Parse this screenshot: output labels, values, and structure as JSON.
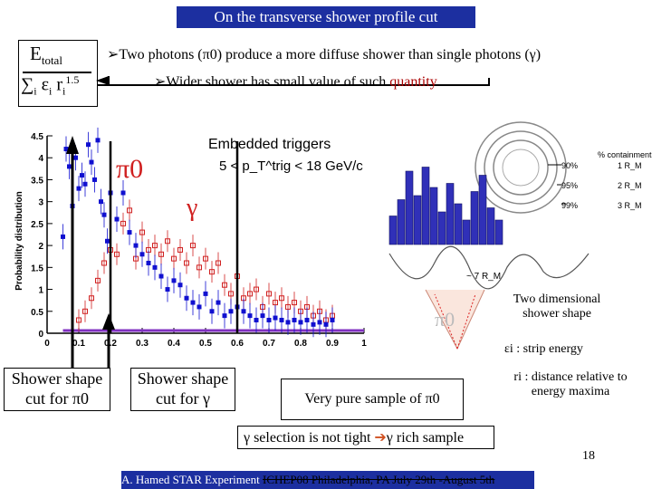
{
  "title": "On the transverse shower profile cut",
  "formula": {
    "numerator": "E",
    "numerator_sub": "total",
    "denominator": "∑",
    "den_i": "i",
    "den_eps": "ε",
    "den_r": "r",
    "den_exp": "1.5"
  },
  "bullets": {
    "b1": "Two photons (π0) produce a more diffuse shower than single photons (γ)",
    "b2_prefix": "Wider shower has small value of such ",
    "b2_quantity": "quantity"
  },
  "chart_data": {
    "type": "scatter",
    "title": "Embedded triggers",
    "subtitle": "5 < p_T^trig < 18 GeV/c",
    "ylabel": "Probability distribution",
    "xlabel": "",
    "xlim": [
      0,
      1
    ],
    "ylim": [
      0,
      4.5
    ],
    "x_ticks": [
      "0",
      "0.1",
      "0.2",
      "0.3",
      "0.4",
      "0.5",
      "0.6",
      "0.7",
      "0.8",
      "0.9",
      "1"
    ],
    "y_ticks": [
      "0",
      "0.5",
      "1",
      "1.5",
      "2",
      "2.5",
      "3",
      "3.5",
      "4",
      "4.5"
    ],
    "series": [
      {
        "name": "π0",
        "color": "#1010d0",
        "x": [
          0.05,
          0.06,
          0.07,
          0.08,
          0.09,
          0.1,
          0.11,
          0.12,
          0.13,
          0.14,
          0.15,
          0.16,
          0.17,
          0.18,
          0.19,
          0.2,
          0.22,
          0.24,
          0.26,
          0.28,
          0.3,
          0.32,
          0.34,
          0.36,
          0.38,
          0.4,
          0.42,
          0.44,
          0.46,
          0.48,
          0.5,
          0.52,
          0.54,
          0.56,
          0.58,
          0.6,
          0.62,
          0.64,
          0.66,
          0.68,
          0.7,
          0.72,
          0.74,
          0.76,
          0.78,
          0.8,
          0.82,
          0.84,
          0.86,
          0.88,
          0.9
        ],
        "y": [
          2.2,
          4.2,
          3.8,
          2.9,
          4.0,
          3.3,
          3.6,
          3.4,
          4.3,
          3.9,
          3.5,
          4.4,
          3.0,
          2.7,
          2.1,
          3.2,
          2.6,
          3.2,
          2.3,
          2.0,
          1.8,
          1.6,
          1.5,
          1.3,
          1.0,
          1.2,
          1.1,
          0.8,
          0.7,
          0.6,
          0.9,
          0.5,
          0.7,
          0.4,
          0.5,
          0.6,
          0.5,
          0.4,
          0.3,
          0.4,
          0.3,
          0.35,
          0.3,
          0.25,
          0.3,
          0.25,
          0.3,
          0.2,
          0.25,
          0.2,
          0.3
        ]
      },
      {
        "name": "γ",
        "color": "#d02020",
        "x": [
          0.1,
          0.12,
          0.14,
          0.16,
          0.18,
          0.2,
          0.22,
          0.24,
          0.26,
          0.28,
          0.3,
          0.32,
          0.34,
          0.36,
          0.38,
          0.4,
          0.42,
          0.44,
          0.46,
          0.48,
          0.5,
          0.52,
          0.54,
          0.56,
          0.58,
          0.6,
          0.62,
          0.64,
          0.66,
          0.68,
          0.7,
          0.72,
          0.74,
          0.76,
          0.78,
          0.8,
          0.82,
          0.84,
          0.86,
          0.88,
          0.9
        ],
        "y": [
          0.3,
          0.5,
          0.8,
          1.2,
          1.6,
          1.9,
          1.8,
          2.5,
          2.8,
          1.7,
          2.3,
          1.9,
          2.0,
          1.8,
          2.1,
          1.7,
          1.9,
          1.6,
          2.0,
          1.5,
          1.7,
          1.4,
          1.6,
          1.1,
          0.9,
          1.3,
          0.8,
          0.9,
          1.0,
          0.6,
          0.9,
          0.7,
          0.8,
          0.6,
          0.7,
          0.5,
          0.6,
          0.4,
          0.5,
          0.3,
          0.4
        ]
      }
    ],
    "cut_lines": [
      0.08,
      0.2,
      0.6
    ],
    "pi0_label": "π0",
    "gamma_label": "γ"
  },
  "shower_panel": {
    "containment_header": "% containment",
    "containment_rows": [
      {
        "pct": "90%",
        "rm": "1 R_M"
      },
      {
        "pct": "95%",
        "rm": "2 R_M"
      },
      {
        "pct": "99%",
        "rm": "3 R_M"
      }
    ],
    "size_label": "~ 7 R_M",
    "pi0_label": "π0",
    "histogram_values": [
      0.35,
      0.55,
      0.9,
      0.6,
      0.95,
      0.7,
      0.4,
      0.75,
      0.5,
      0.3,
      0.65,
      0.85,
      0.45,
      0.3
    ],
    "caption": "Two dimensional shower shape",
    "eps_label": "εi : strip energy",
    "r_label": "ri : distance relative to energy maxima"
  },
  "labels": {
    "cut_pi0": "Shower shape cut for π0",
    "cut_gamma": "Shower shape cut for γ",
    "pure_sample": "Very pure sample of π0",
    "gamma_selection_a": "γ selection is not tight ",
    "gamma_selection_b": "γ rich sample"
  },
  "page_number": "18",
  "footer": {
    "author": "A. Hamed STAR Experiment ",
    "event": "ICHEP08 Philadelphia, PA July 29th -August 5th"
  }
}
